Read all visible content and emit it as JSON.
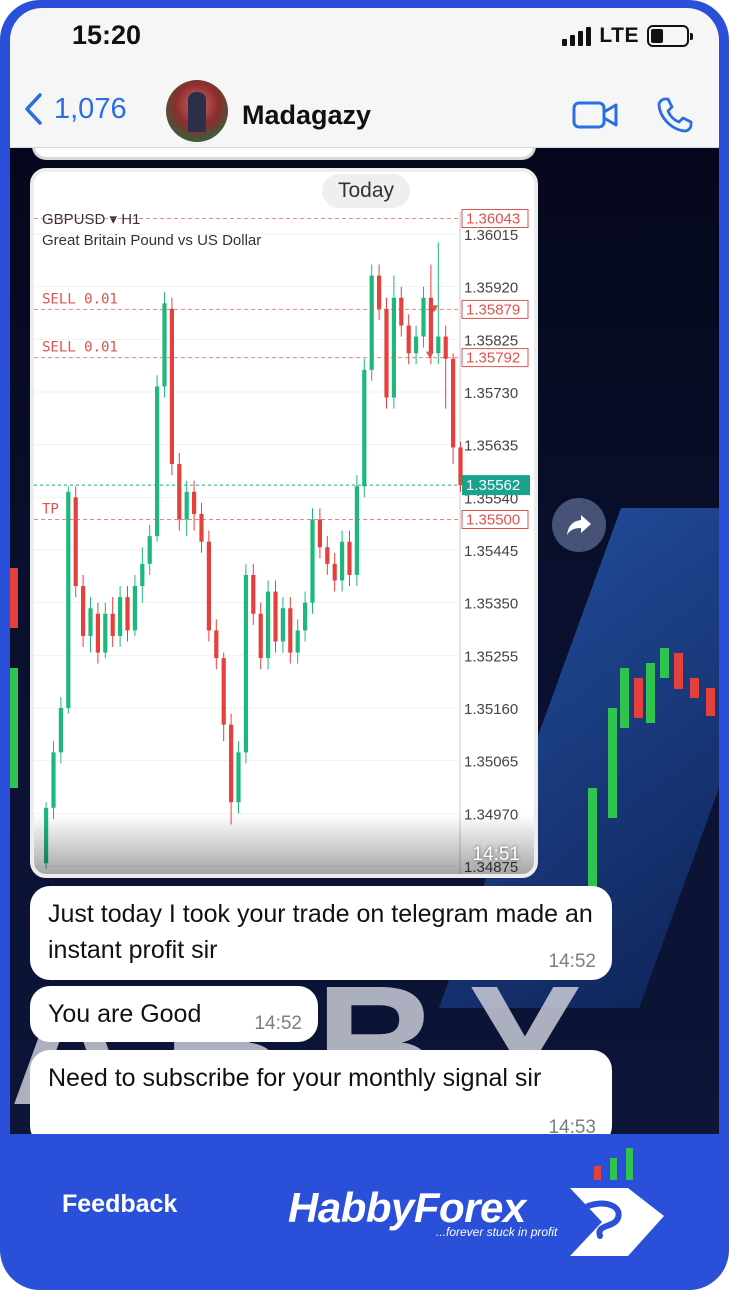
{
  "status_bar": {
    "time": "15:20",
    "network": "LTE"
  },
  "header": {
    "back_count": "1,076",
    "contact_name": "Madagazy",
    "icons": [
      "chevron-left-icon",
      "video-call-icon",
      "phone-call-icon"
    ]
  },
  "image_message": {
    "today_label": "Today",
    "time": "14:51",
    "chart": {
      "symbol": "GBPUSD",
      "timeframe": "H1",
      "description": "Great Britain Pound vs US Dollar",
      "price_ticks": [
        "1.36015",
        "1.35920",
        "1.35825",
        "1.35730",
        "1.35635",
        "1.35540",
        "1.35445",
        "1.35350",
        "1.35255",
        "1.35160",
        "1.35065",
        "1.34970",
        "1.34875"
      ],
      "order_lines": [
        {
          "label": "",
          "price": "1.36043"
        },
        {
          "label": "SELL 0.01",
          "price": "1.35879"
        },
        {
          "label": "SELL 0.01",
          "price": "1.35792"
        },
        {
          "label": "TP",
          "price": "1.35500"
        }
      ],
      "current_price": "1.35562",
      "colors": {
        "up": "#1db97c",
        "down": "#e5403c",
        "order": "#d9534f",
        "current": "#1aa38c"
      }
    }
  },
  "messages": [
    {
      "text": "Just today I took your trade on telegram made an instant profit sir",
      "time": "14:52"
    },
    {
      "text": "You are Good",
      "time": "14:52"
    },
    {
      "text": "Need to subscribe for your monthly signal sir",
      "time": "14:53"
    }
  ],
  "footer": {
    "feedback_label": "Feedback",
    "brand": "HabbyForex",
    "tagline": "...forever stuck in profit"
  }
}
